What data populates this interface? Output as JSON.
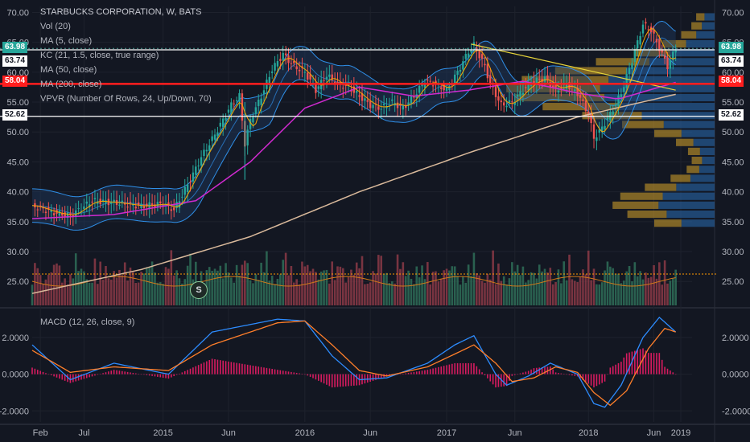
{
  "header": {
    "symbol_line": "STARBUCKS CORPORATION, W, BATS",
    "indicators": [
      "Vol (20)",
      "MA (5, close)",
      "KC (21, 1.5, close, true range)",
      "MA (50, close)",
      "MA (200, close)",
      "VPVR (Number Of Rows, 24, Up/Down, 70)"
    ],
    "macd_label": "MACD (12, 26, close, 9)",
    "event_marker": "S"
  },
  "price_badges": {
    "left": [
      "63.98",
      "63.74",
      "58.04",
      "52.62"
    ],
    "right": [
      "63.98",
      "63.74",
      "58.04",
      "52.62"
    ]
  },
  "colors": {
    "background": "#131722",
    "up": "#26a69a",
    "down": "#ef5350",
    "ma5": "#f7a600",
    "ma50": "#d02ad0",
    "ma200": "#d9b99b",
    "keltner": "#2f8fe8",
    "trendline": "#e6d43a",
    "hline_red": "#ff1e1e",
    "hline_white": "#ffffff",
    "macd": "#2d8cff",
    "signal": "#ff7f2a",
    "hist": "#d81b60",
    "vpvr_up": "#2a6db5",
    "vpvr_down": "#c89a2a",
    "badge_teal": "#26a69a",
    "badge_red": "#ff1e1e"
  },
  "chart_data": [
    {
      "type": "line",
      "title": "STARBUCKS CORPORATION, W, BATS",
      "x_ticks": [
        "Feb",
        "Jul",
        "2015",
        "Jun",
        "2016",
        "Jun",
        "2017",
        "Jun",
        "2018",
        "Jun",
        "2019"
      ],
      "y_ticks": [
        "25.00",
        "30.00",
        "35.00",
        "40.00",
        "45.00",
        "50.00",
        "55.00",
        "60.00",
        "65.00",
        "70.00"
      ],
      "ylim": [
        21,
        71
      ],
      "x_unit": "weeks since start of chart (≈ Jan 2014)",
      "series": [
        {
          "name": "Close",
          "points": [
            [
              0,
              37.7
            ],
            [
              8,
              36.5
            ],
            [
              14,
              36.0
            ],
            [
              22,
              38.5
            ],
            [
              30,
              38.2
            ],
            [
              40,
              37.6
            ],
            [
              48,
              38.0
            ],
            [
              52,
              37.0
            ],
            [
              58,
              42.0
            ],
            [
              62,
              45.8
            ],
            [
              66,
              48.8
            ],
            [
              70,
              52.0
            ],
            [
              73,
              54.5
            ],
            [
              76,
              56.0
            ],
            [
              78,
              48.0
            ],
            [
              80,
              52.0
            ],
            [
              84,
              56.0
            ],
            [
              88,
              60.5
            ],
            [
              92,
              63.0
            ],
            [
              96,
              61.0
            ],
            [
              100,
              60.0
            ],
            [
              104,
              57.0
            ],
            [
              108,
              59.5
            ],
            [
              112,
              58.0
            ],
            [
              116,
              57.5
            ],
            [
              120,
              56.0
            ],
            [
              124,
              54.5
            ],
            [
              128,
              54.0
            ],
            [
              132,
              55.0
            ],
            [
              136,
              54.0
            ],
            [
              140,
              56.0
            ],
            [
              144,
              58.5
            ],
            [
              148,
              58.0
            ],
            [
              152,
              57.0
            ],
            [
              156,
              60.0
            ],
            [
              160,
              63.5
            ],
            [
              162,
              64.5
            ],
            [
              166,
              61.0
            ],
            [
              168,
              58.0
            ],
            [
              172,
              54.5
            ],
            [
              176,
              55.0
            ],
            [
              180,
              57.0
            ],
            [
              184,
              58.5
            ],
            [
              188,
              59.0
            ],
            [
              192,
              57.0
            ],
            [
              196,
              58.0
            ],
            [
              200,
              56.5
            ],
            [
              204,
              53.0
            ],
            [
              206,
              49.0
            ],
            [
              208,
              50.0
            ],
            [
              212,
              53.0
            ],
            [
              216,
              56.5
            ],
            [
              220,
              62.0
            ],
            [
              224,
              68.0
            ],
            [
              227,
              67.0
            ],
            [
              230,
              64.0
            ],
            [
              233,
              61.0
            ],
            [
              236,
              63.98
            ]
          ]
        },
        {
          "name": "MA (200, close)",
          "points": [
            [
              0,
              23.0
            ],
            [
              40,
              27.0
            ],
            [
              80,
              32.5
            ],
            [
              120,
              40.0
            ],
            [
              160,
              46.5
            ],
            [
              200,
              52.5
            ],
            [
              236,
              56.3
            ]
          ]
        },
        {
          "name": "MA (50, close)",
          "points": [
            [
              0,
              35.5
            ],
            [
              30,
              36.2
            ],
            [
              60,
              38.5
            ],
            [
              80,
              45.0
            ],
            [
              100,
              54.0
            ],
            [
              120,
              57.5
            ],
            [
              140,
              56.0
            ],
            [
              160,
              57.0
            ],
            [
              180,
              58.5
            ],
            [
              200,
              56.5
            ],
            [
              215,
              55.5
            ],
            [
              236,
              58.3
            ]
          ]
        },
        {
          "name": "Trendline",
          "points": [
            [
              161,
              64.7
            ],
            [
              236,
              57.0
            ]
          ]
        }
      ],
      "horizontal_levels": [
        63.98,
        63.74,
        58.04,
        52.62
      ]
    },
    {
      "type": "bar",
      "title": "Vol (20)",
      "note": "volume histogram with orange average line"
    },
    {
      "type": "line",
      "title": "MACD (12, 26, close, 9)",
      "y_ticks": [
        "2.0000",
        "0.0000",
        "-2.0000"
      ],
      "ylim": [
        -2.6,
        3.4
      ],
      "series": [
        {
          "name": "MACD",
          "points": [
            [
              0,
              1.6
            ],
            [
              14,
              -0.3
            ],
            [
              30,
              0.6
            ],
            [
              50,
              0.0
            ],
            [
              66,
              2.3
            ],
            [
              90,
              3.0
            ],
            [
              100,
              2.9
            ],
            [
              110,
              1.0
            ],
            [
              120,
              -0.3
            ],
            [
              130,
              -0.2
            ],
            [
              145,
              0.6
            ],
            [
              155,
              1.6
            ],
            [
              162,
              2.1
            ],
            [
              170,
              0.0
            ],
            [
              174,
              -0.6
            ],
            [
              182,
              -0.1
            ],
            [
              190,
              0.6
            ],
            [
              200,
              0.0
            ],
            [
              206,
              -1.6
            ],
            [
              210,
              -1.8
            ],
            [
              216,
              -0.6
            ],
            [
              224,
              2.0
            ],
            [
              230,
              3.1
            ],
            [
              236,
              2.3
            ]
          ]
        },
        {
          "name": "Signal",
          "points": [
            [
              0,
              1.3
            ],
            [
              14,
              0.1
            ],
            [
              30,
              0.4
            ],
            [
              50,
              0.2
            ],
            [
              66,
              1.6
            ],
            [
              90,
              2.8
            ],
            [
              100,
              2.9
            ],
            [
              110,
              1.6
            ],
            [
              120,
              0.2
            ],
            [
              130,
              -0.1
            ],
            [
              145,
              0.4
            ],
            [
              155,
              1.1
            ],
            [
              162,
              1.6
            ],
            [
              170,
              0.6
            ],
            [
              176,
              -0.4
            ],
            [
              184,
              -0.2
            ],
            [
              192,
              0.4
            ],
            [
              200,
              0.1
            ],
            [
              206,
              -1.0
            ],
            [
              212,
              -1.7
            ],
            [
              218,
              -0.9
            ],
            [
              226,
              1.4
            ],
            [
              232,
              2.5
            ],
            [
              236,
              2.3
            ]
          ]
        }
      ]
    }
  ]
}
